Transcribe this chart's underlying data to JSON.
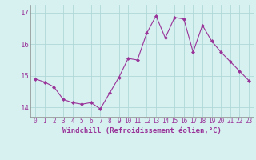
{
  "x": [
    0,
    1,
    2,
    3,
    4,
    5,
    6,
    7,
    8,
    9,
    10,
    11,
    12,
    13,
    14,
    15,
    16,
    17,
    18,
    19,
    20,
    21,
    22,
    23
  ],
  "y": [
    14.9,
    14.8,
    14.65,
    14.25,
    14.15,
    14.1,
    14.15,
    13.95,
    14.45,
    14.95,
    15.55,
    15.5,
    16.35,
    16.9,
    16.2,
    16.85,
    16.8,
    15.75,
    16.6,
    16.1,
    15.75,
    15.45,
    15.15,
    14.85
  ],
  "line_color": "#993399",
  "marker": "D",
  "marker_size": 2.0,
  "bg_color": "#d7f0f0",
  "grid_color": "#b0d8d8",
  "xlabel": "Windchill (Refroidissement éolien,°C)",
  "ylim": [
    13.7,
    17.25
  ],
  "yticks": [
    14,
    15,
    16,
    17
  ],
  "ytick_labels": [
    "14",
    "15",
    "16",
    "17"
  ],
  "xticks": [
    0,
    1,
    2,
    3,
    4,
    5,
    6,
    7,
    8,
    9,
    10,
    11,
    12,
    13,
    14,
    15,
    16,
    17,
    18,
    19,
    20,
    21,
    22,
    23
  ],
  "tick_color": "#993399",
  "label_color": "#993399",
  "spine_color": "#888888",
  "tick_fontsize": 5.5,
  "xlabel_fontsize": 6.5,
  "ytick_fontsize": 6.5
}
